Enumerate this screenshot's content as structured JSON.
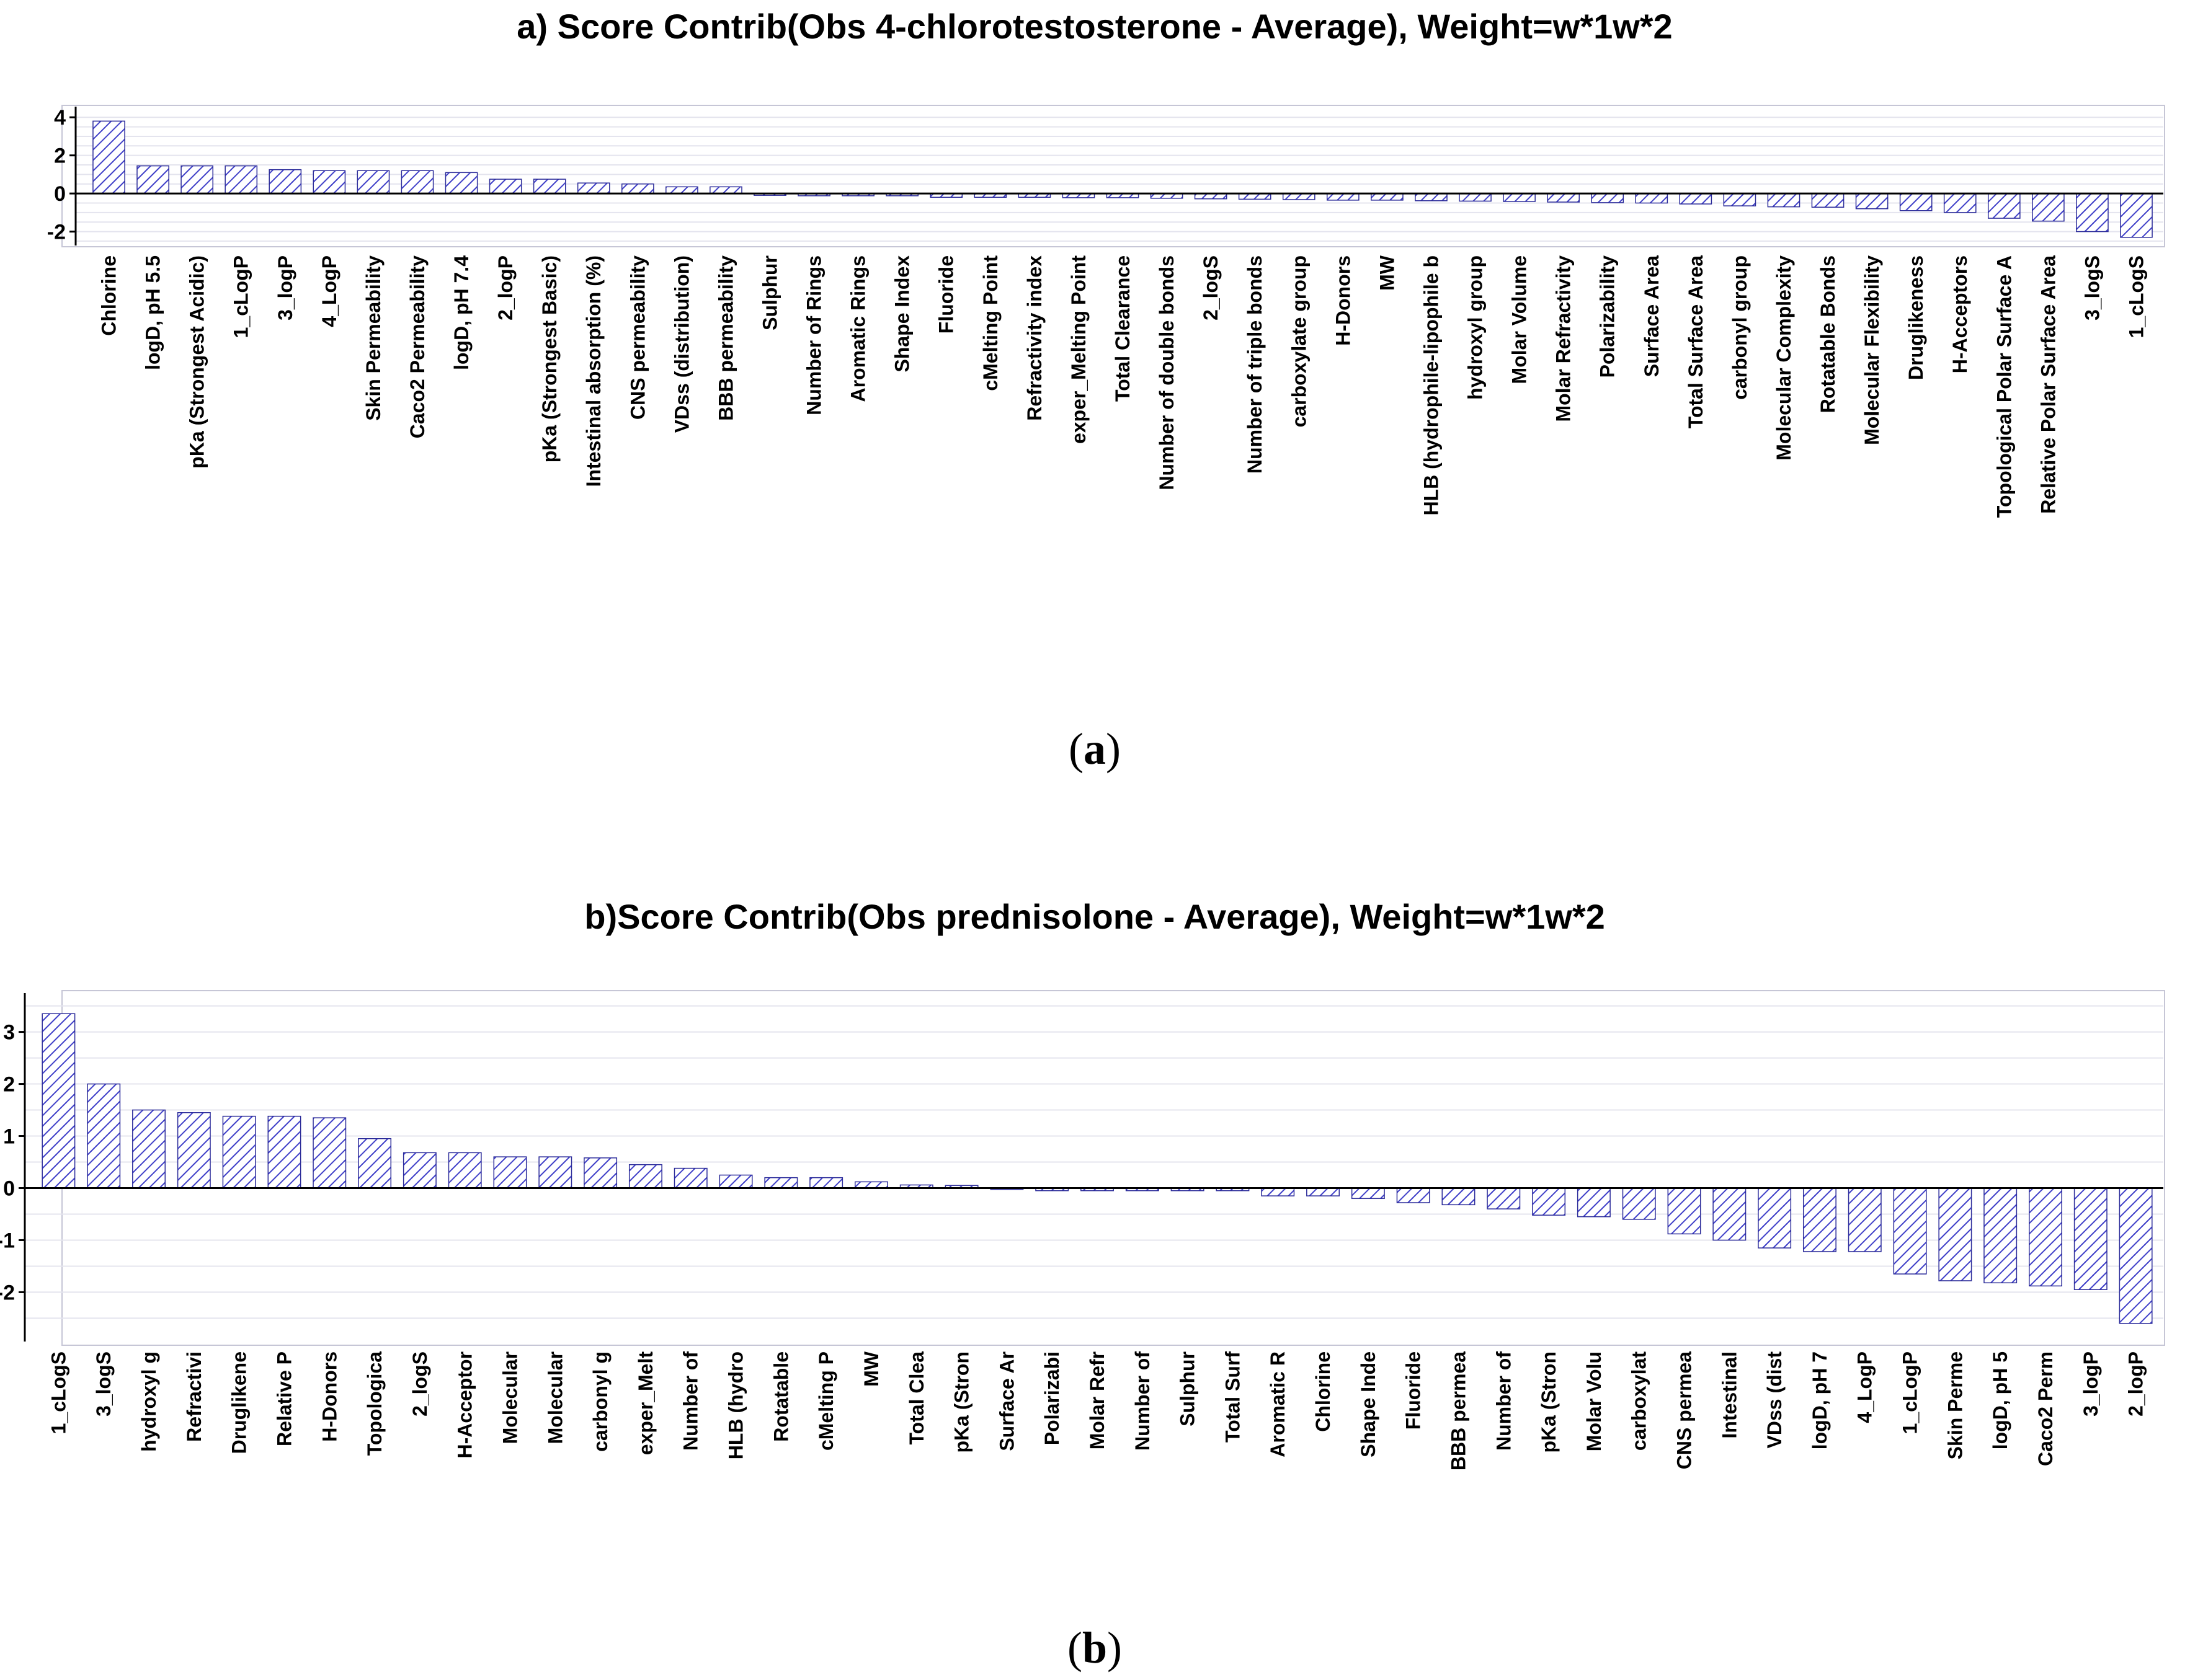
{
  "colors": {
    "bar_fill": "#ffffff",
    "bar_hatch": "#3f3fc8",
    "bar_edge": "#2c2c9a",
    "grid": "#e4e4ee",
    "frame": "#c6c6d6",
    "axis": "#000000"
  },
  "captions": [
    {
      "open": "(",
      "letter": "a",
      "close": ")"
    },
    {
      "open": "(",
      "letter": "b",
      "close": ")"
    }
  ],
  "chart_data": [
    {
      "type": "bar",
      "title": "a) Score Contrib(Obs 4-chlorotestosterone - Average), Weight=w*1w*2",
      "xlabel": "",
      "ylabel": "",
      "ylim": [
        -2.6,
        4.3
      ],
      "yticks": [
        -2,
        0,
        2,
        4
      ],
      "ytick_labels": [
        "-2",
        "0",
        "2",
        "4"
      ],
      "categories": [
        "Chlorine",
        "logD, pH 5.5",
        "pKa (Strongest Acidic)",
        "1_cLogP",
        "3_logP",
        "4_LogP",
        "Skin Permeability",
        "Caco2 Permeability",
        "logD, pH 7.4",
        "2_logP",
        "pKa (Strongest Basic)",
        "Intestinal absorption (%)",
        "CNS permeability",
        "VDss (distribution)",
        "BBB permeability",
        "Sulphur",
        "Number of Rings",
        "Aromatic Rings",
        "Shape Index",
        "Fluoride",
        "cMelting Point",
        "Refractivity index",
        "exper_Melting Point",
        "Total Clearance",
        "Number of double bonds",
        "2_logS",
        "Number of triple bonds",
        "carboxylate group",
        "H-Donors",
        "MW",
        "HLB (hydrophile-lipophile b",
        "hydroxyl group",
        "Molar Volume",
        "Molar Refractivity",
        "Polarizability",
        "Surface Area",
        "Total Surface Area",
        "carbonyl group",
        "Molecular Complexity",
        "Rotatable Bonds",
        "Molecular Flexibility",
        "Druglikeness",
        "H-Acceptors",
        "Topological Polar Surface A",
        "Relative Polar Surface Area",
        "3_logS",
        "1_cLogS"
      ],
      "values": [
        3.8,
        1.45,
        1.45,
        1.45,
        1.25,
        1.2,
        1.2,
        1.2,
        1.1,
        0.75,
        0.75,
        0.55,
        0.5,
        0.35,
        0.35,
        -0.1,
        -0.12,
        -0.12,
        -0.12,
        -0.2,
        -0.2,
        -0.2,
        -0.22,
        -0.22,
        -0.25,
        -0.28,
        -0.3,
        -0.32,
        -0.35,
        -0.35,
        -0.38,
        -0.4,
        -0.42,
        -0.45,
        -0.48,
        -0.5,
        -0.55,
        -0.65,
        -0.7,
        -0.72,
        -0.8,
        -0.9,
        -1.0,
        -1.3,
        -1.45,
        -2.0,
        -2.3
      ]
    },
    {
      "type": "bar",
      "title": "b)Score Contrib(Obs prednisolone - Average), Weight=w*1w*2",
      "xlabel": "",
      "ylabel": "",
      "ylim": [
        -2.9,
        3.65
      ],
      "yticks": [
        -2,
        -1,
        0,
        1,
        2,
        3
      ],
      "ytick_labels": [
        "-2",
        "-1",
        "0",
        "1",
        "2",
        "3"
      ],
      "categories": [
        "1_cLogS",
        "3_logS",
        "hydroxyl g",
        "Refractivi",
        "Druglikene",
        "Relative P",
        "H-Donors",
        "Topologica",
        "2_logS",
        "H-Acceptor",
        "Molecular",
        "Molecular",
        "carbonyl g",
        "exper_Melt",
        "Number of",
        "HLB (hydro",
        "Rotatable",
        "cMelting P",
        "MW",
        "Total Clea",
        "pKa (Stron",
        "Surface Ar",
        "Polarizabi",
        "Molar Refr",
        "Number of",
        "Sulphur",
        "Total Surf",
        "Aromatic R",
        "Chlorine",
        "Shape Inde",
        "Fluoride",
        "BBB permea",
        "Number of",
        "pKa (Stron",
        "Molar Volu",
        "carboxylat",
        "CNS permea",
        "Intestinal",
        "VDss (dist",
        "logD, pH 7",
        "4_LogP",
        "1_cLogP",
        "Skin Perme",
        "logD, pH 5",
        "Caco2 Perm",
        "3_logP",
        "2_logP"
      ],
      "values": [
        3.35,
        2.0,
        1.5,
        1.45,
        1.38,
        1.38,
        1.35,
        0.95,
        0.68,
        0.68,
        0.6,
        0.6,
        0.58,
        0.45,
        0.38,
        0.25,
        0.2,
        0.2,
        0.12,
        0.06,
        0.05,
        0.0,
        -0.05,
        -0.05,
        -0.05,
        -0.05,
        -0.05,
        -0.15,
        -0.15,
        -0.2,
        -0.28,
        -0.32,
        -0.4,
        -0.52,
        -0.55,
        -0.6,
        -0.88,
        -1.0,
        -1.15,
        -1.22,
        -1.22,
        -1.65,
        -1.78,
        -1.82,
        -1.88,
        -1.95,
        -2.6
      ]
    }
  ]
}
